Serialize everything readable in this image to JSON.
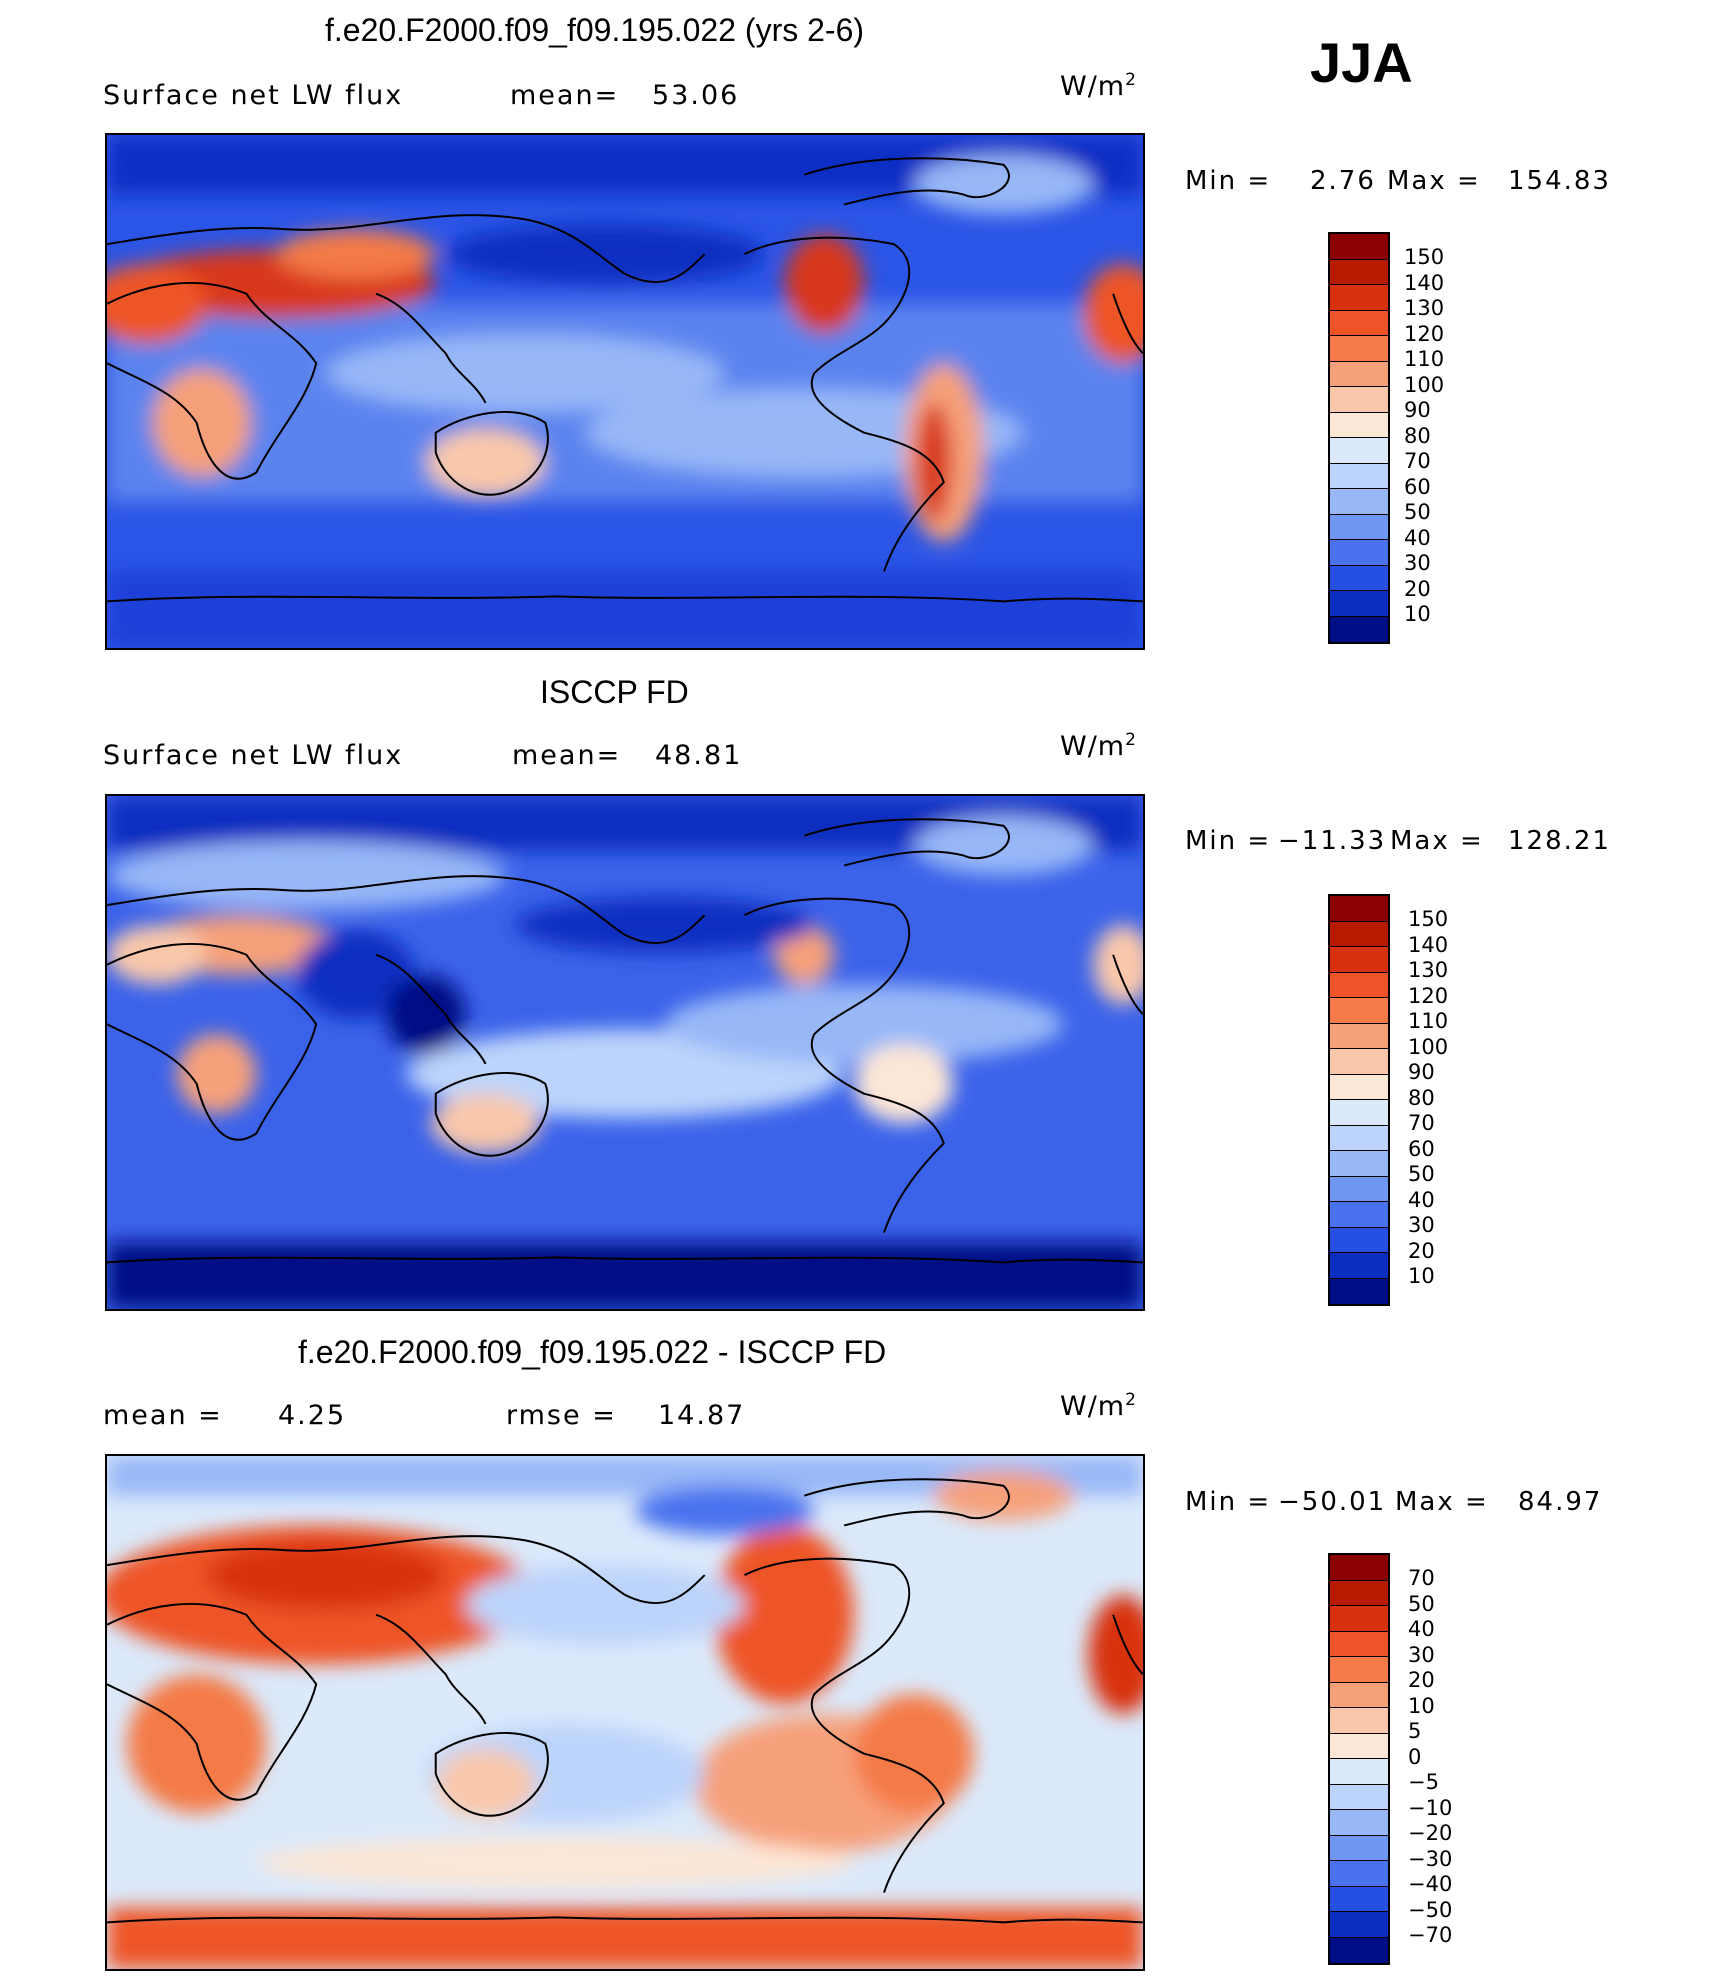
{
  "season": "JJA",
  "panels": [
    {
      "id": "model",
      "title": "f.e20.F2000.f09_f09.195.022 (yrs 2-6)",
      "left_text": "Surface net LW flux",
      "stat1_label": "mean=",
      "stat1_value": "53.06",
      "units_base": "W/m",
      "units_exp": "2",
      "min_label": "Min =",
      "min_value": "2.76",
      "max_label": "Max =",
      "max_value": "154.83",
      "colorbar_labels": [
        "150",
        "140",
        "130",
        "120",
        "110",
        "100",
        "90",
        "80",
        "70",
        "60",
        "50",
        "40",
        "30",
        "20",
        "10"
      ]
    },
    {
      "id": "obs",
      "title": "ISCCP FD",
      "left_text": "Surface net LW flux",
      "stat1_label": "mean=",
      "stat1_value": "48.81",
      "units_base": "W/m",
      "units_exp": "2",
      "min_label": "Min =",
      "min_value": "−11.33",
      "max_label": "Max =",
      "max_value": "128.21",
      "colorbar_labels": [
        "150",
        "140",
        "130",
        "120",
        "110",
        "100",
        "90",
        "80",
        "70",
        "60",
        "50",
        "40",
        "30",
        "20",
        "10"
      ]
    },
    {
      "id": "diff",
      "title": "f.e20.F2000.f09_f09.195.022 - ISCCP FD",
      "left_text": "mean =",
      "left_value": "4.25",
      "stat1_label": "rmse =",
      "stat1_value": "14.87",
      "units_base": "W/m",
      "units_exp": "2",
      "min_label": "Min =",
      "min_value": "−50.01",
      "max_label": "Max =",
      "max_value": "84.97",
      "colorbar_labels": [
        "70",
        "50",
        "40",
        "30",
        "20",
        "10",
        "5",
        "0",
        "−5",
        "−10",
        "−20",
        "−30",
        "−40",
        "−50",
        "−70"
      ]
    }
  ],
  "colorbar_colors": [
    "#8b0000",
    "#b81a00",
    "#d8310e",
    "#ee5428",
    "#f47a47",
    "#f6a07a",
    "#f9c8aa",
    "#fde7d6",
    "#dbe9fb",
    "#bcd4fb",
    "#97b7f7",
    "#6f97f2",
    "#4a72ee",
    "#2550e2",
    "#0b2ec0",
    "#000f85"
  ],
  "map_shading_colors": {
    "deep_blue": "#0a2fc4",
    "mid_blue": "#3b63ea",
    "light_blue": "#8fb0f5",
    "pale": "#fbe3d3",
    "orange": "#f48a5b",
    "red": "#d8391c"
  }
}
